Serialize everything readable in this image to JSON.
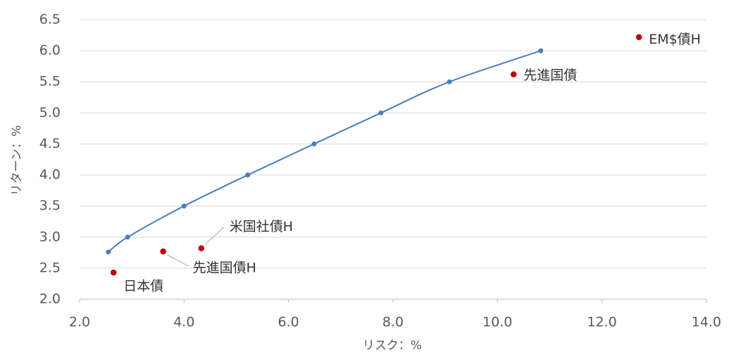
{
  "chart_data": {
    "type": "scatter",
    "xlabel": "リスク：%",
    "ylabel": "リターン：%",
    "xlim": [
      2,
      14
    ],
    "xticks": [
      {
        "value": 2,
        "label": "2.0"
      },
      {
        "value": 4,
        "label": "4.0"
      },
      {
        "value": 6,
        "label": "6.0"
      },
      {
        "value": 8,
        "label": "8.0"
      },
      {
        "value": 10,
        "label": "10.0"
      },
      {
        "value": 12,
        "label": "12.0"
      },
      {
        "value": 14,
        "label": "14.0"
      }
    ],
    "ylim": [
      2,
      6.5
    ],
    "yticks": [
      {
        "value": 2,
        "label": "2.0"
      },
      2.5,
      {
        "value": 3,
        "label": "3.0"
      },
      3.5,
      {
        "value": 4,
        "label": "4.0"
      },
      4.5,
      {
        "value": 5,
        "label": "5.0"
      },
      5.5,
      {
        "value": 6,
        "label": "6.0"
      },
      6.5
    ],
    "grid": true,
    "series": [
      {
        "color": "#4a7ebb",
        "line": true,
        "x": [
          2.55,
          2.92,
          4.0,
          5.22,
          6.49,
          7.77,
          9.08,
          10.83
        ],
        "y": [
          2.76,
          3.0,
          3.5,
          4.0,
          4.5,
          5.0,
          5.5,
          6.0
        ]
      },
      {
        "color": "#c00000",
        "line": false,
        "x": [
          2.65,
          3.6,
          4.33,
          10.31,
          12.71
        ],
        "y": [
          2.43,
          2.77,
          2.82,
          5.62,
          6.22
        ],
        "labels": [
          "日本債",
          "先進国債H",
          "米国社債H",
          "先進国債",
          "EM$債H"
        ]
      }
    ]
  }
}
